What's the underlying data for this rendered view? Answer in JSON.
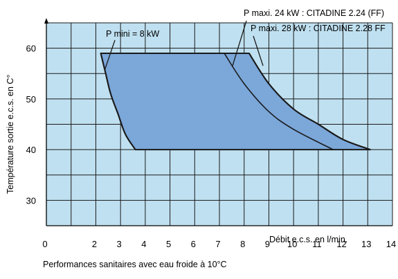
{
  "chart_data": {
    "type": "area",
    "title": "",
    "xlabel": "Débit e.c.s. en l/min.",
    "ylabel": "Température sortie e.c.s. en C°",
    "caption": "Performances sanitaires avec eau froide à 10°C",
    "xlim": [
      0,
      14
    ],
    "ylim": [
      25,
      65
    ],
    "x_ticks": [
      "0",
      "2",
      "3",
      "4",
      "5",
      "6",
      "7",
      "8",
      "9",
      "10",
      "11",
      "12",
      "13",
      "14"
    ],
    "x_tick_values": [
      0,
      2,
      3,
      4,
      5,
      6,
      7,
      8,
      9,
      10,
      11,
      12,
      13,
      14
    ],
    "y_ticks": [
      "30",
      "40",
      "50",
      "60"
    ],
    "y_tick_values": [
      30,
      40,
      50,
      60
    ],
    "grid": true,
    "colors": {
      "background": "#bfe0f0",
      "region": "#7ba7d9",
      "grid": "#1a1a1a",
      "line": "#1a1a1a"
    },
    "annotations": {
      "p_mini": "P mini = 8 kW",
      "p_maxi_24": "P maxi. 24 kW : CITADINE 2.24 (FF)",
      "p_maxi_28": "P maxi. 28 kW : CITADINE 2.28 FF"
    },
    "series": [
      {
        "label_key": "p_mini",
        "x": [
          2.2,
          2.4,
          2.6,
          2.9,
          3.2,
          3.6
        ],
        "y": [
          59,
          55,
          51,
          47,
          43,
          40
        ]
      },
      {
        "label_key": "p_maxi_24",
        "x": [
          7.2,
          8.0,
          9.0,
          10.0,
          11.6
        ],
        "y": [
          59,
          53,
          47.5,
          44,
          40
        ]
      },
      {
        "label_key": "p_maxi_28",
        "x": [
          8.2,
          9.0,
          10.0,
          11.0,
          12.0,
          13.1
        ],
        "y": [
          59,
          53,
          48,
          45,
          42,
          40
        ]
      }
    ],
    "top_plateau": {
      "x": [
        2.2,
        8.2
      ],
      "y": 59
    },
    "bottom_plateau": {
      "x": [
        3.6,
        13.1
      ],
      "y": 40
    }
  }
}
